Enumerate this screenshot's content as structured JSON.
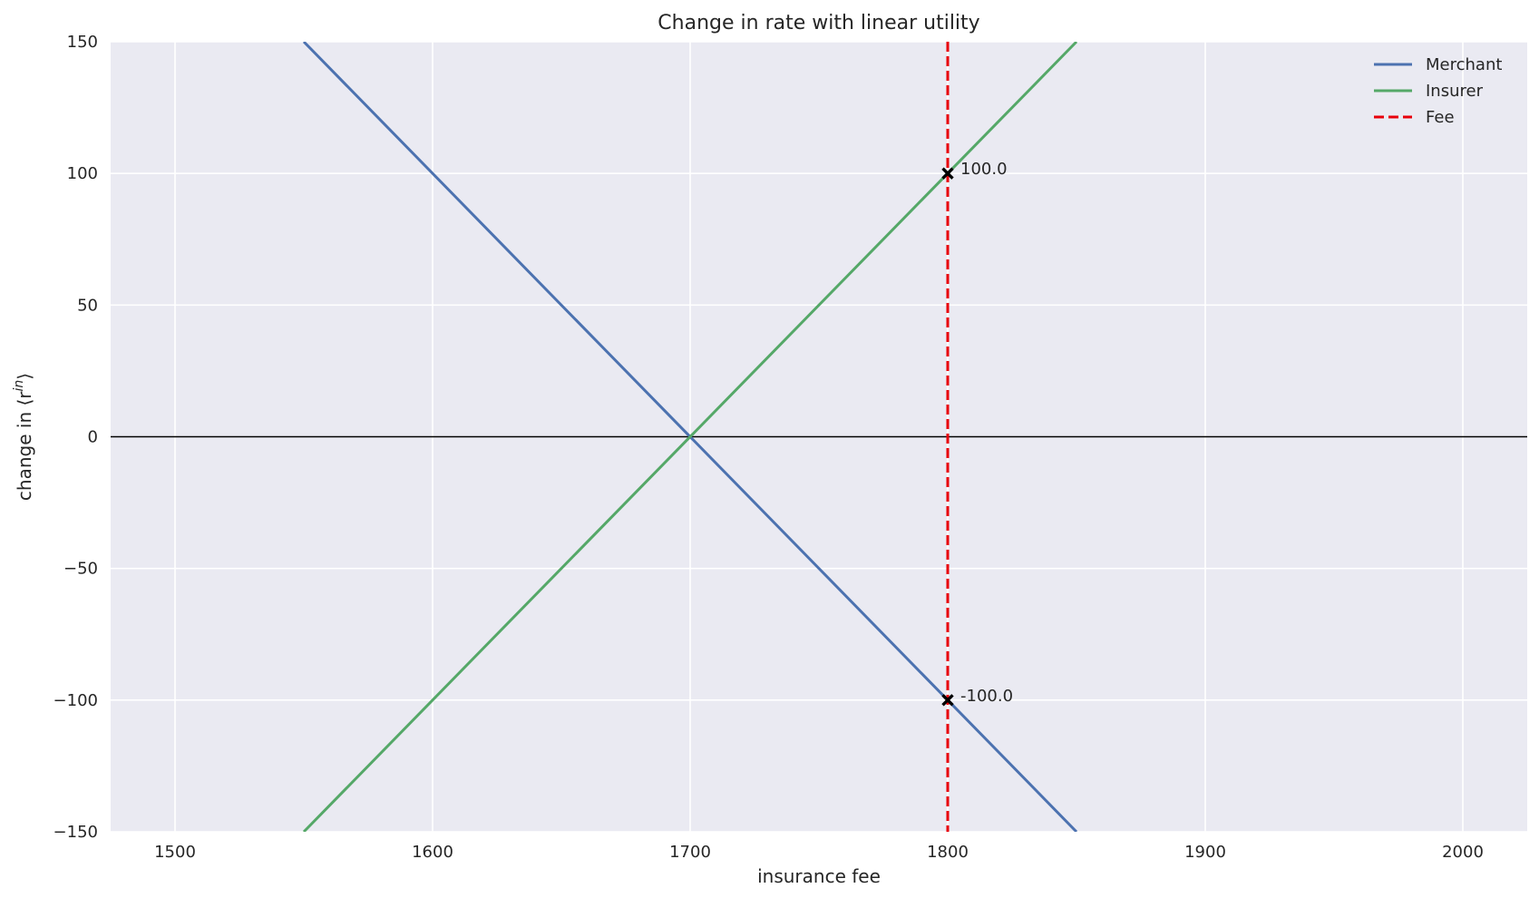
{
  "chart_data": {
    "type": "line",
    "title": "Change in rate with linear utility",
    "xlabel": "insurance fee",
    "ylabel_prefix": "change in ⟨r",
    "ylabel_sup": "in",
    "ylabel_suffix": "⟩",
    "xlim": [
      1475,
      2025
    ],
    "ylim": [
      -150,
      150
    ],
    "xticks": [
      1500,
      1600,
      1700,
      1800,
      1900,
      2000
    ],
    "xtick_labels": [
      "1500",
      "1600",
      "1700",
      "1800",
      "1900",
      "2000"
    ],
    "yticks": [
      150,
      100,
      50,
      0,
      -50,
      -100,
      -150
    ],
    "ytick_labels": [
      "150",
      "100",
      "50",
      "0",
      "−50",
      "−100",
      "−150"
    ],
    "grid": true,
    "legend_position": "top-right",
    "series": [
      {
        "name": "Merchant",
        "color": "#4c72b0",
        "style": "solid",
        "x": [
          1550,
          1850
        ],
        "y": [
          150,
          -150
        ]
      },
      {
        "name": "Insurer",
        "color": "#55a868",
        "style": "solid",
        "x": [
          1550,
          1850
        ],
        "y": [
          -150,
          150
        ]
      }
    ],
    "vline": {
      "name": "Fee",
      "x": 1800,
      "color": "#e8000b",
      "style": "dashed"
    },
    "hline": {
      "y": 0,
      "color": "#000000"
    },
    "points": [
      {
        "x": 1800,
        "y": 100,
        "label": "100.0"
      },
      {
        "x": 1800,
        "y": -100,
        "label": "-100.0"
      }
    ]
  }
}
